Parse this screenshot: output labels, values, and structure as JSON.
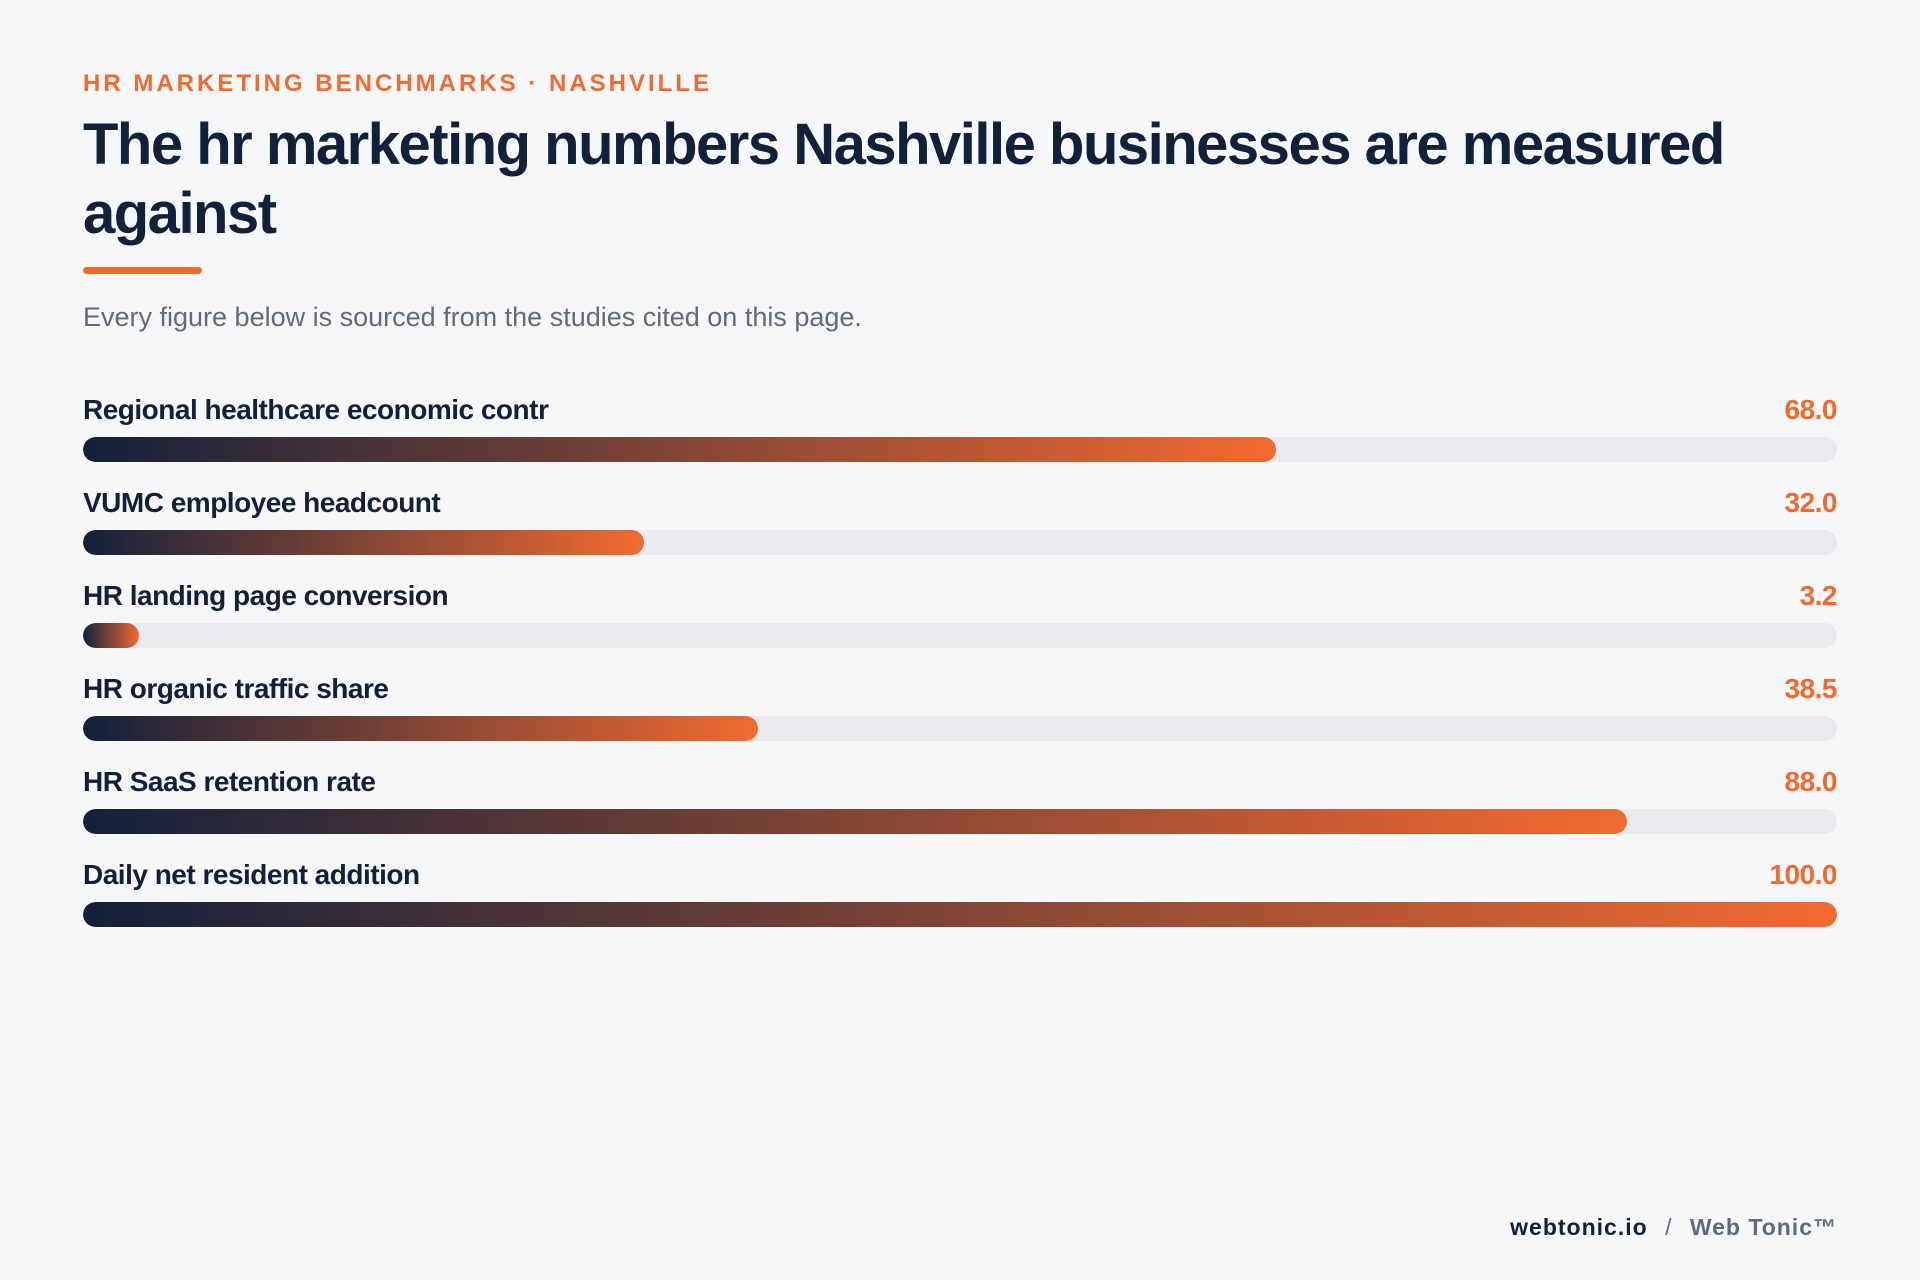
{
  "header": {
    "eyebrow": "HR MARKETING BENCHMARKS · NASHVILLE",
    "title": "The hr marketing numbers Nashville businesses are measured against",
    "subtitle": "Every figure below is sourced from the studies cited on this page."
  },
  "colors": {
    "accent": "#f26a30",
    "navy": "#13203a",
    "track": "#e8eaf0",
    "background": "#f6f7f9"
  },
  "chart_data": {
    "type": "bar",
    "orientation": "horizontal",
    "title": "The hr marketing numbers Nashville businesses are measured against",
    "xlim": [
      0,
      100
    ],
    "grid": false,
    "categories": [
      "Regional healthcare economic contr",
      "VUMC employee headcount",
      "HR landing page conversion",
      "HR organic traffic share",
      "HR SaaS retention rate",
      "Daily net resident addition"
    ],
    "values": [
      68.0,
      32.0,
      3.2,
      38.5,
      88.0,
      100.0
    ],
    "value_labels": [
      "68.0",
      "32.0",
      "3.2",
      "38.5",
      "88.0",
      "100.0"
    ]
  },
  "footer": {
    "domain": "webtonic.io",
    "separator": "/",
    "brand": "Web Tonic™"
  }
}
